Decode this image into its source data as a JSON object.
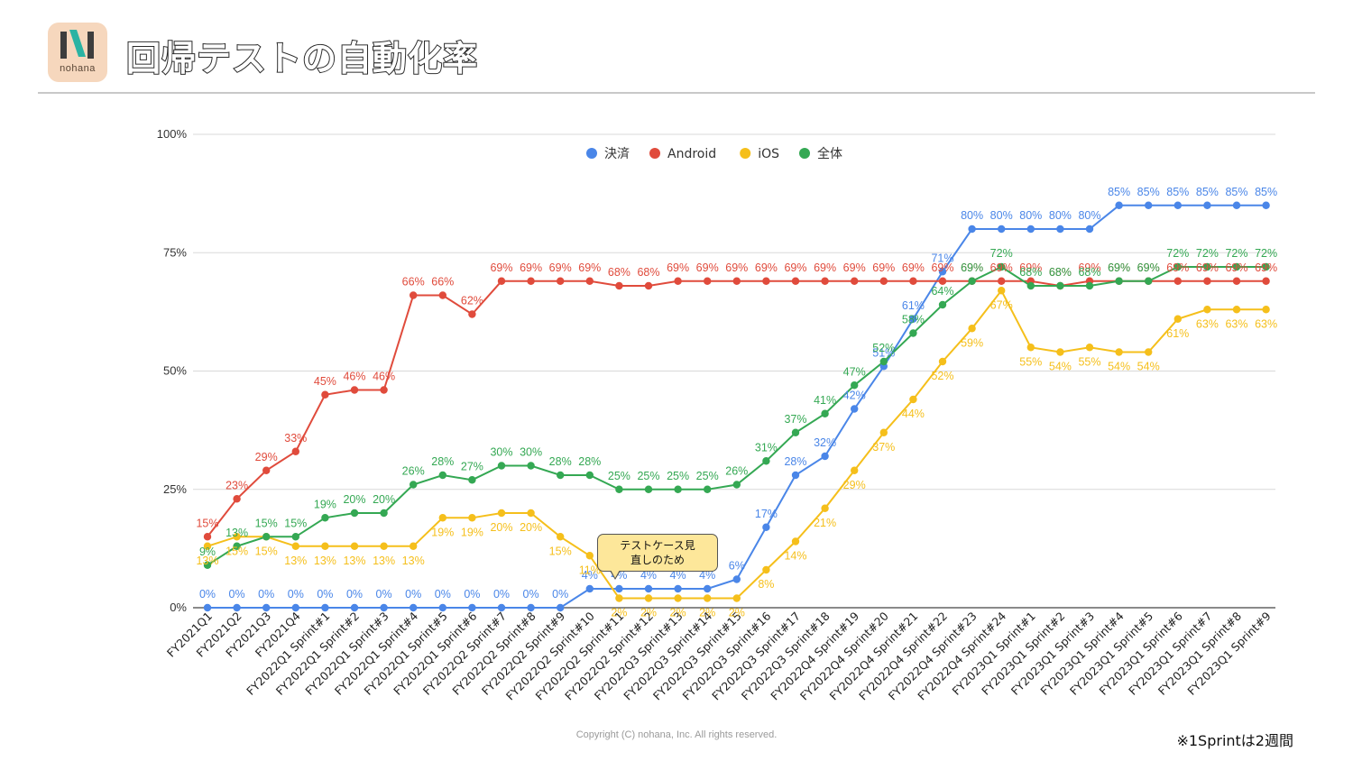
{
  "header": {
    "logo_text": "nohana",
    "title": "回帰テストの自動化率"
  },
  "footer": {
    "copyright": "Copyright (C) nohana, Inc. All rights reserved.",
    "note": "※1Sprintは2週間"
  },
  "callout": {
    "text_line1": "テストケース見",
    "text_line2": "直しのため"
  },
  "chart_data": {
    "type": "line",
    "title": "",
    "xlabel": "",
    "ylabel": "",
    "ylim": [
      0,
      100
    ],
    "yticks": [
      "0%",
      "25%",
      "50%",
      "75%",
      "100%"
    ],
    "grid": true,
    "legend_position": "top",
    "categories": [
      "FY2021Q1",
      "FY2021Q2",
      "FY2021Q3",
      "FY2021Q4",
      "FY2022Q1 Sprint#1",
      "FY2022Q1 Sprint#2",
      "FY2022Q1 Sprint#3",
      "FY2022Q1 Sprint#4",
      "FY2022Q1 Sprint#5",
      "FY2022Q1 Sprint#6",
      "FY2022Q2 Sprint#7",
      "FY2022Q2 Sprint#8",
      "FY2022Q2 Sprint#9",
      "FY2022Q2 Sprint#10",
      "FY2022Q2 Sprint#11",
      "FY2022Q2 Sprint#12",
      "FY2022Q3 Sprint#13",
      "FY2022Q3 Sprint#14",
      "FY2022Q3 Sprint#15",
      "FY2022Q3 Sprint#16",
      "FY2022Q3 Sprint#17",
      "FY2022Q3 Sprint#18",
      "FY2022Q4 Sprint#19",
      "FY2022Q4 Sprint#20",
      "FY2022Q4 Sprint#21",
      "FY2022Q4 Sprint#22",
      "FY2022Q4 Sprint#23",
      "FY2022Q4 Sprint#24",
      "FY2023Q1 Sprint#1",
      "FY2023Q1 Sprint#2",
      "FY2023Q1 Sprint#3",
      "FY2023Q1 Sprint#4",
      "FY2023Q1 Sprint#5",
      "FY2023Q1 Sprint#6",
      "FY2023Q1 Sprint#7",
      "FY2023Q1 Sprint#8",
      "FY2023Q1 Sprint#9"
    ],
    "series": [
      {
        "name": "決済",
        "color": "#4a86e8",
        "label_pos": "above",
        "values": [
          0,
          0,
          0,
          0,
          0,
          0,
          0,
          0,
          0,
          0,
          0,
          0,
          0,
          4,
          4,
          4,
          4,
          4,
          6,
          17,
          28,
          32,
          42,
          51,
          61,
          71,
          80,
          80,
          80,
          80,
          80,
          85,
          85,
          85,
          85,
          85,
          85
        ]
      },
      {
        "name": "Android",
        "color": "#e04b3c",
        "label_pos": "above",
        "values": [
          15,
          23,
          29,
          33,
          45,
          46,
          46,
          66,
          66,
          62,
          69,
          69,
          69,
          69,
          68,
          68,
          69,
          69,
          69,
          69,
          69,
          69,
          69,
          69,
          69,
          69,
          69,
          69,
          69,
          68,
          69,
          69,
          69,
          69,
          69,
          69,
          69
        ]
      },
      {
        "name": "iOS",
        "color": "#f5bf1b",
        "label_pos": "below",
        "values": [
          13,
          15,
          15,
          13,
          13,
          13,
          13,
          13,
          19,
          19,
          20,
          20,
          15,
          11,
          2,
          2,
          2,
          2,
          2,
          8,
          14,
          21,
          29,
          37,
          44,
          52,
          59,
          67,
          55,
          54,
          55,
          54,
          54,
          61,
          63,
          63,
          63
        ]
      },
      {
        "name": "全体",
        "color": "#34a853",
        "label_pos": "above",
        "values": [
          9,
          13,
          15,
          15,
          19,
          20,
          20,
          26,
          28,
          27,
          30,
          30,
          28,
          28,
          25,
          25,
          25,
          25,
          26,
          31,
          37,
          41,
          47,
          52,
          58,
          64,
          69,
          72,
          68,
          68,
          68,
          69,
          69,
          72,
          72,
          72,
          72
        ]
      }
    ]
  }
}
